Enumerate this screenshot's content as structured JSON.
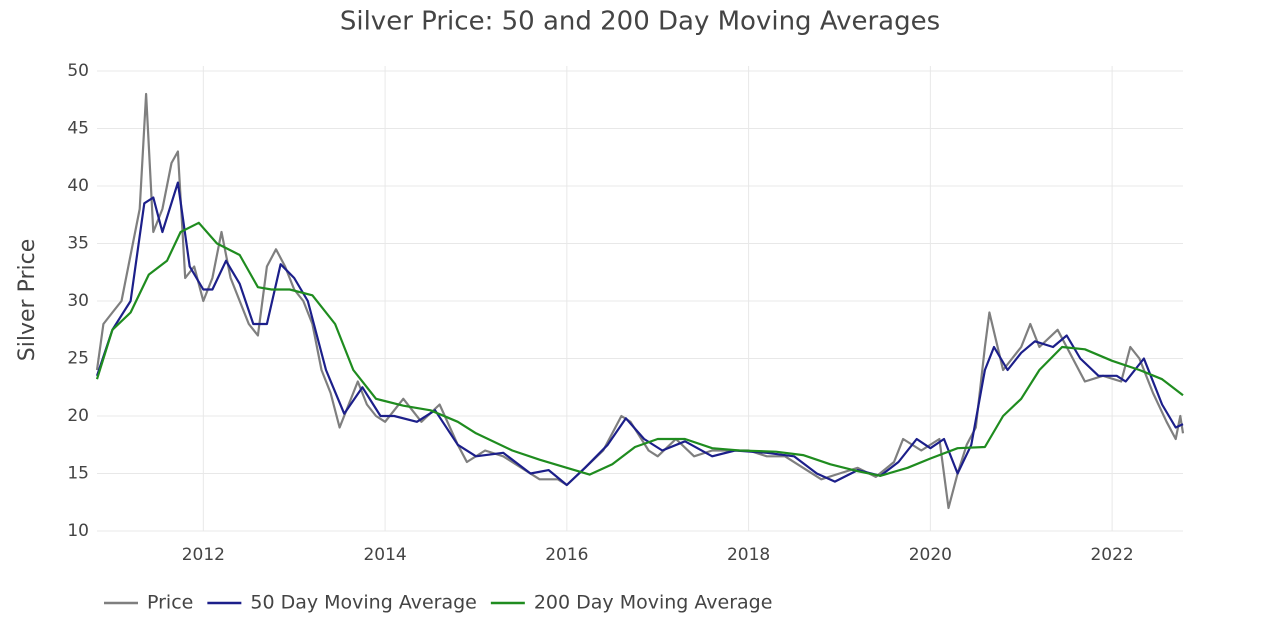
{
  "chart_data": {
    "type": "line",
    "title": "Silver Price: 50 and 200 Day Moving Averages",
    "y_label": "Silver Price",
    "xlim": [
      2010.83,
      2022.78
    ],
    "xticks": [
      2012,
      2014,
      2016,
      2018,
      2020,
      2022
    ],
    "ylim": [
      10,
      50
    ],
    "yticks": [
      10,
      15,
      20,
      25,
      30,
      35,
      40,
      45,
      50
    ],
    "grid": true,
    "legend": "bottom-left",
    "series": [
      {
        "name": "Price",
        "color": "#7f7f7f",
        "x": [
          2010.83,
          2010.9,
          2011.0,
          2011.1,
          2011.2,
          2011.3,
          2011.37,
          2011.45,
          2011.55,
          2011.65,
          2011.72,
          2011.8,
          2011.9,
          2012.0,
          2012.1,
          2012.2,
          2012.3,
          2012.4,
          2012.5,
          2012.6,
          2012.7,
          2012.8,
          2012.9,
          2013.0,
          2013.1,
          2013.2,
          2013.3,
          2013.4,
          2013.5,
          2013.6,
          2013.7,
          2013.8,
          2013.9,
          2014.0,
          2014.2,
          2014.4,
          2014.6,
          2014.8,
          2014.9,
          2015.1,
          2015.3,
          2015.5,
          2015.7,
          2015.9,
          2016.0,
          2016.2,
          2016.4,
          2016.6,
          2016.7,
          2016.9,
          2017.0,
          2017.2,
          2017.4,
          2017.6,
          2017.8,
          2018.0,
          2018.2,
          2018.4,
          2018.6,
          2018.8,
          2019.0,
          2019.2,
          2019.4,
          2019.6,
          2019.7,
          2019.9,
          2020.1,
          2020.2,
          2020.3,
          2020.4,
          2020.5,
          2020.6,
          2020.65,
          2020.8,
          2020.9,
          2021.0,
          2021.1,
          2021.2,
          2021.4,
          2021.5,
          2021.7,
          2021.9,
          2022.1,
          2022.2,
          2022.3,
          2022.45,
          2022.6,
          2022.7,
          2022.75,
          2022.78
        ],
        "values": [
          24,
          28,
          29,
          30,
          34,
          38,
          48,
          36,
          38,
          42,
          43,
          32,
          33,
          30,
          32,
          36,
          32,
          30,
          28,
          27,
          33,
          34.5,
          33,
          31,
          30,
          28,
          24,
          22,
          19,
          21,
          23,
          21,
          20,
          19.5,
          21.5,
          19.5,
          21,
          17.5,
          16,
          17,
          16.5,
          15.5,
          14.5,
          14.5,
          14,
          15.5,
          17,
          20,
          19.5,
          17,
          16.5,
          18,
          16.5,
          17,
          17,
          17,
          16.5,
          16.5,
          15.5,
          14.5,
          15,
          15.5,
          14.7,
          16,
          18,
          17,
          18,
          12,
          15,
          17.5,
          19,
          26,
          29,
          24,
          25,
          26,
          28,
          26,
          27.5,
          26,
          23,
          23.5,
          23,
          26,
          25,
          22,
          19.5,
          18,
          20,
          18.5
        ]
      },
      {
        "name": "50 Day Moving Average",
        "color": "#1c1f8a",
        "x": [
          2010.83,
          2011.0,
          2011.2,
          2011.35,
          2011.45,
          2011.55,
          2011.72,
          2011.85,
          2012.0,
          2012.1,
          2012.25,
          2012.4,
          2012.55,
          2012.7,
          2012.85,
          2013.0,
          2013.15,
          2013.35,
          2013.55,
          2013.75,
          2013.95,
          2014.1,
          2014.35,
          2014.55,
          2014.8,
          2015.0,
          2015.3,
          2015.6,
          2015.8,
          2016.0,
          2016.2,
          2016.45,
          2016.65,
          2016.85,
          2017.05,
          2017.3,
          2017.6,
          2017.85,
          2018.2,
          2018.5,
          2018.75,
          2018.95,
          2019.2,
          2019.45,
          2019.65,
          2019.85,
          2020.0,
          2020.15,
          2020.3,
          2020.45,
          2020.6,
          2020.7,
          2020.85,
          2021.0,
          2021.15,
          2021.35,
          2021.5,
          2021.65,
          2021.85,
          2022.05,
          2022.15,
          2022.35,
          2022.55,
          2022.7,
          2022.78
        ],
        "values": [
          23.5,
          27.5,
          30,
          38.5,
          39,
          36,
          40.3,
          33,
          31,
          31,
          33.5,
          31.5,
          28,
          28,
          33.2,
          32,
          30,
          24,
          20.2,
          22.5,
          20,
          20,
          19.5,
          20.5,
          17.5,
          16.5,
          16.8,
          15,
          15.3,
          14,
          15.5,
          17.5,
          19.8,
          18,
          17,
          17.8,
          16.5,
          17,
          16.8,
          16.5,
          15,
          14.3,
          15.3,
          14.8,
          16,
          18,
          17.2,
          18,
          15,
          17.5,
          24,
          26,
          24,
          25.5,
          26.5,
          26,
          27,
          25,
          23.5,
          23.5,
          23,
          25,
          21,
          19,
          19.3
        ]
      },
      {
        "name": "200 Day Moving Average",
        "color": "#1f8c1f",
        "x": [
          2010.83,
          2011.0,
          2011.2,
          2011.4,
          2011.6,
          2011.75,
          2011.95,
          2012.15,
          2012.4,
          2012.6,
          2012.75,
          2012.95,
          2013.2,
          2013.45,
          2013.65,
          2013.9,
          2014.2,
          2014.5,
          2014.8,
          2015.0,
          2015.4,
          2015.7,
          2016.0,
          2016.25,
          2016.5,
          2016.75,
          2017.0,
          2017.3,
          2017.6,
          2017.9,
          2018.3,
          2018.6,
          2018.9,
          2019.2,
          2019.45,
          2019.75,
          2020.0,
          2020.3,
          2020.6,
          2020.8,
          2021.0,
          2021.2,
          2021.45,
          2021.7,
          2022.0,
          2022.3,
          2022.55,
          2022.78
        ],
        "values": [
          23.2,
          27.5,
          29,
          32.3,
          33.5,
          36,
          36.8,
          35,
          34,
          31.2,
          31,
          31,
          30.5,
          28,
          24,
          21.5,
          20.9,
          20.5,
          19.5,
          18.5,
          17,
          16.2,
          15.5,
          14.9,
          15.8,
          17.3,
          18,
          18,
          17.2,
          17,
          16.9,
          16.6,
          15.8,
          15.2,
          14.8,
          15.5,
          16.3,
          17.2,
          17.3,
          20,
          21.5,
          24,
          26,
          25.8,
          24.8,
          24,
          23.2,
          21.8
        ]
      }
    ]
  }
}
